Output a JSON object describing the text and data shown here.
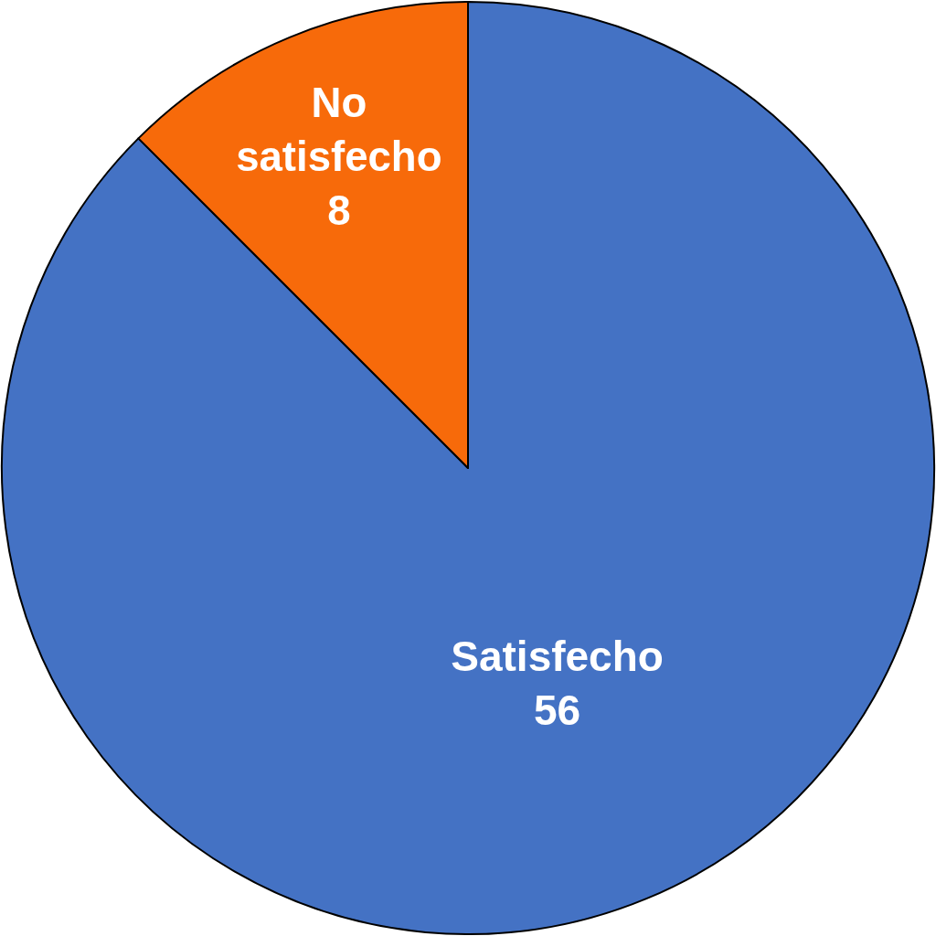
{
  "chart_data": {
    "type": "pie",
    "categories": [
      "Satisfecho",
      "No satisfecho"
    ],
    "values": [
      56,
      8
    ],
    "colors": [
      "#4472c4",
      "#f76a0a"
    ],
    "data_labels": true,
    "legend": false
  }
}
